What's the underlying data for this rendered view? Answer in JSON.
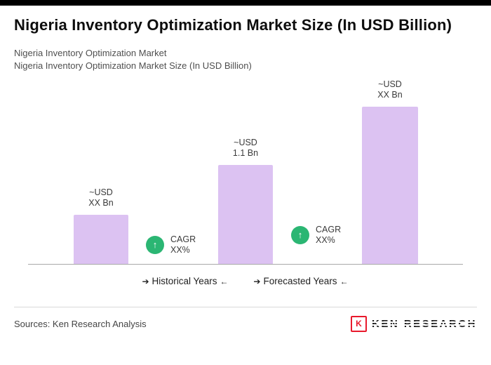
{
  "page": {
    "title": "Nigeria Inventory Optimization Market Size (In USD Billion)",
    "subtitle_line1": "Nigeria Inventory Optimization Market",
    "subtitle_line2": "Nigeria Inventory Optimization Market Size (In USD Billion)"
  },
  "chart_data": {
    "type": "bar",
    "title": "Nigeria Inventory Optimization Market Size (In USD Billion)",
    "bar_labels": [
      "~USD\nXX Bn",
      "~USD\n1.1 Bn",
      "~USD\nXX Bn"
    ],
    "values": [
      0.55,
      1.1,
      1.75
    ],
    "ylim": [
      0,
      2
    ],
    "bar_color": "#dcc2f2",
    "accent_green": "#2bb673",
    "up_arrow": "↑",
    "cagr": [
      {
        "label": "CAGR",
        "value": "XX%"
      },
      {
        "label": "CAGR",
        "value": "XX%"
      }
    ],
    "group_labels": [
      {
        "lead_arrow": "➔",
        "text": "Historical Years",
        "trail_arrow": "←"
      },
      {
        "lead_arrow": "➔",
        "text": "Forecasted Years",
        "trail_arrow": "←"
      }
    ],
    "legend_position": "none",
    "grid": false
  },
  "footer": {
    "sources": "Sources: Ken Research Analysis",
    "logo_k": "K",
    "logo_text": "KEN RESEARCH"
  }
}
